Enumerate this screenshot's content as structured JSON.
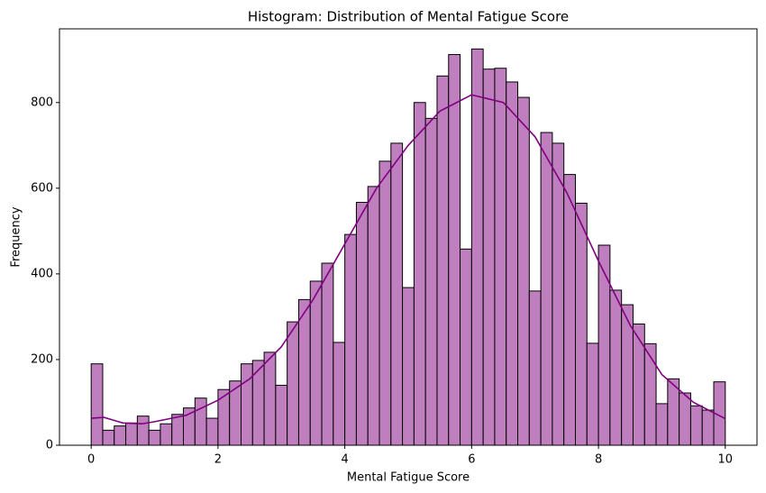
{
  "chart_data": {
    "type": "histogram",
    "title": "Histogram: Distribution of Mental Fatigue Score",
    "xlabel": "Mental Fatigue Score",
    "ylabel": "Frequency",
    "bins": [
      0,
      0.1818,
      0.3636,
      0.5455,
      0.7273,
      0.9091,
      1.0909,
      1.2727,
      1.4545,
      1.6364,
      1.8182,
      2.0,
      2.1818,
      2.3636,
      2.5455,
      2.7273,
      2.9091,
      3.0909,
      3.2727,
      3.4545,
      3.6364,
      3.8182,
      4.0,
      4.1818,
      4.3636,
      4.5455,
      4.7273,
      4.9091,
      5.0909,
      5.2727,
      5.4545,
      5.6364,
      5.8182,
      6.0,
      6.1818,
      6.3636,
      6.5455,
      6.7273,
      6.9091,
      7.0909,
      7.2727,
      7.4545,
      7.6364,
      7.8182,
      8.0,
      8.1818,
      8.3636,
      8.5455,
      8.7273,
      8.9091,
      9.0909,
      9.2727,
      9.4545,
      9.6364,
      9.8182,
      10
    ],
    "counts": [
      190,
      35,
      45,
      52,
      68,
      35,
      50,
      72,
      87,
      110,
      63,
      130,
      150,
      190,
      198,
      217,
      140,
      288,
      340,
      383,
      425,
      240,
      492,
      567,
      604,
      663,
      705,
      368,
      800,
      763,
      862,
      912,
      458,
      925,
      878,
      880,
      848,
      812,
      360,
      730,
      705,
      632,
      565,
      238,
      467,
      362,
      328,
      283,
      237,
      97,
      155,
      122,
      92,
      82,
      148
    ],
    "color": "#bf7fbf",
    "edgecolor": "#000000",
    "kde": {
      "color": "#800080",
      "x": [
        0,
        0.2,
        0.5,
        0.8,
        1.0,
        1.5,
        2.0,
        2.5,
        3.0,
        3.5,
        4.0,
        4.5,
        5.0,
        5.5,
        6.0,
        6.5,
        7.0,
        7.5,
        8.0,
        8.5,
        9.0,
        9.5,
        10
      ],
      "values": [
        63,
        65,
        52,
        50,
        55,
        70,
        105,
        155,
        230,
        340,
        470,
        600,
        700,
        780,
        818,
        800,
        720,
        590,
        430,
        280,
        165,
        100,
        62
      ]
    },
    "xlim": [
      -0.5,
      10.5
    ],
    "ylim": [
      0,
      972
    ],
    "xticks": [
      0,
      2,
      4,
      6,
      8,
      10
    ],
    "yticks": [
      0,
      200,
      400,
      600,
      800
    ],
    "grid": false
  }
}
